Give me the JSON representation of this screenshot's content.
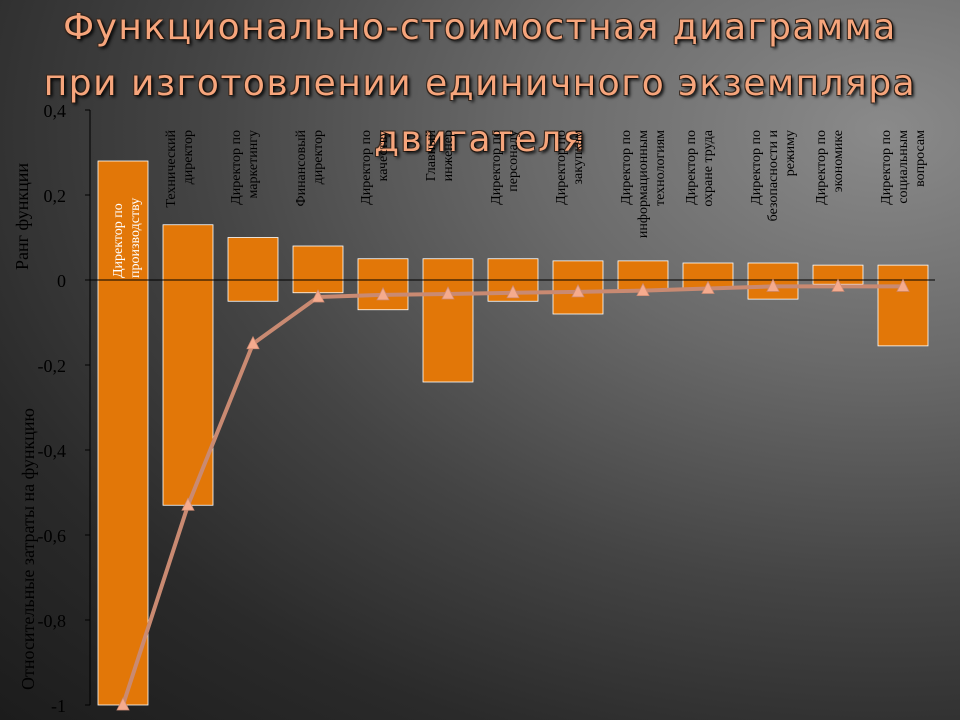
{
  "title": {
    "line1": "Функционально-стоимостная диаграмма",
    "line2": "при изготовлении единичного экземпляра",
    "line3": "двигателя"
  },
  "chart_data": {
    "type": "bar",
    "ylim": [
      -1,
      0.4
    ],
    "ylabel_top": "Ранг функции",
    "ylabel_bottom": "Относительные затраты на функцию",
    "yticks": [
      "0,4",
      "0,2",
      "0",
      "-0,2",
      "-0,4",
      "-0,6",
      "-0,8",
      "-1"
    ],
    "ytick_values": [
      0.4,
      0.2,
      0,
      -0.2,
      -0.4,
      -0.6,
      -0.8,
      -1
    ],
    "categories": [
      [
        "Директор по",
        "производству"
      ],
      [
        "Технический",
        "директор"
      ],
      [
        "Директор по",
        "маркетингу"
      ],
      [
        "Финансовый",
        "директор"
      ],
      [
        "Директор по",
        "качеству"
      ],
      [
        "Главный",
        "инженер"
      ],
      [
        "Директор по",
        "персоналу"
      ],
      [
        "Директор по",
        "закупкам"
      ],
      [
        "Директор по",
        "информационным",
        "технологиям"
      ],
      [
        "Директор по",
        "охране труда"
      ],
      [
        "Директор по",
        "безопасности и",
        "режиму"
      ],
      [
        "Директор по",
        "экономике"
      ],
      [
        "Директор по",
        "социальным",
        "вопросам"
      ]
    ],
    "series": [
      {
        "values_rank": [
          0.28,
          0.13,
          0.1,
          0.08,
          0.05,
          0.05,
          0.05,
          0.045,
          0.045,
          0.04,
          0.04,
          0.035,
          0.035
        ],
        "values_cost": [
          -1.0,
          -0.53,
          -0.05,
          -0.03,
          -0.07,
          -0.24,
          -0.05,
          -0.08,
          -0.025,
          -0.02,
          -0.045,
          -0.01,
          -0.155
        ],
        "values_cumulative": [
          -1.0,
          -0.53,
          -0.15,
          -0.04,
          -0.035,
          -0.033,
          -0.03,
          -0.028,
          -0.025,
          -0.02,
          -0.015,
          -0.015,
          -0.015
        ]
      }
    ],
    "colors": {
      "bar": "#e27708",
      "bar_stroke": "#ffffff",
      "line": "#c98a72",
      "marker": "#f5ab8e",
      "axis": "#000000"
    }
  }
}
